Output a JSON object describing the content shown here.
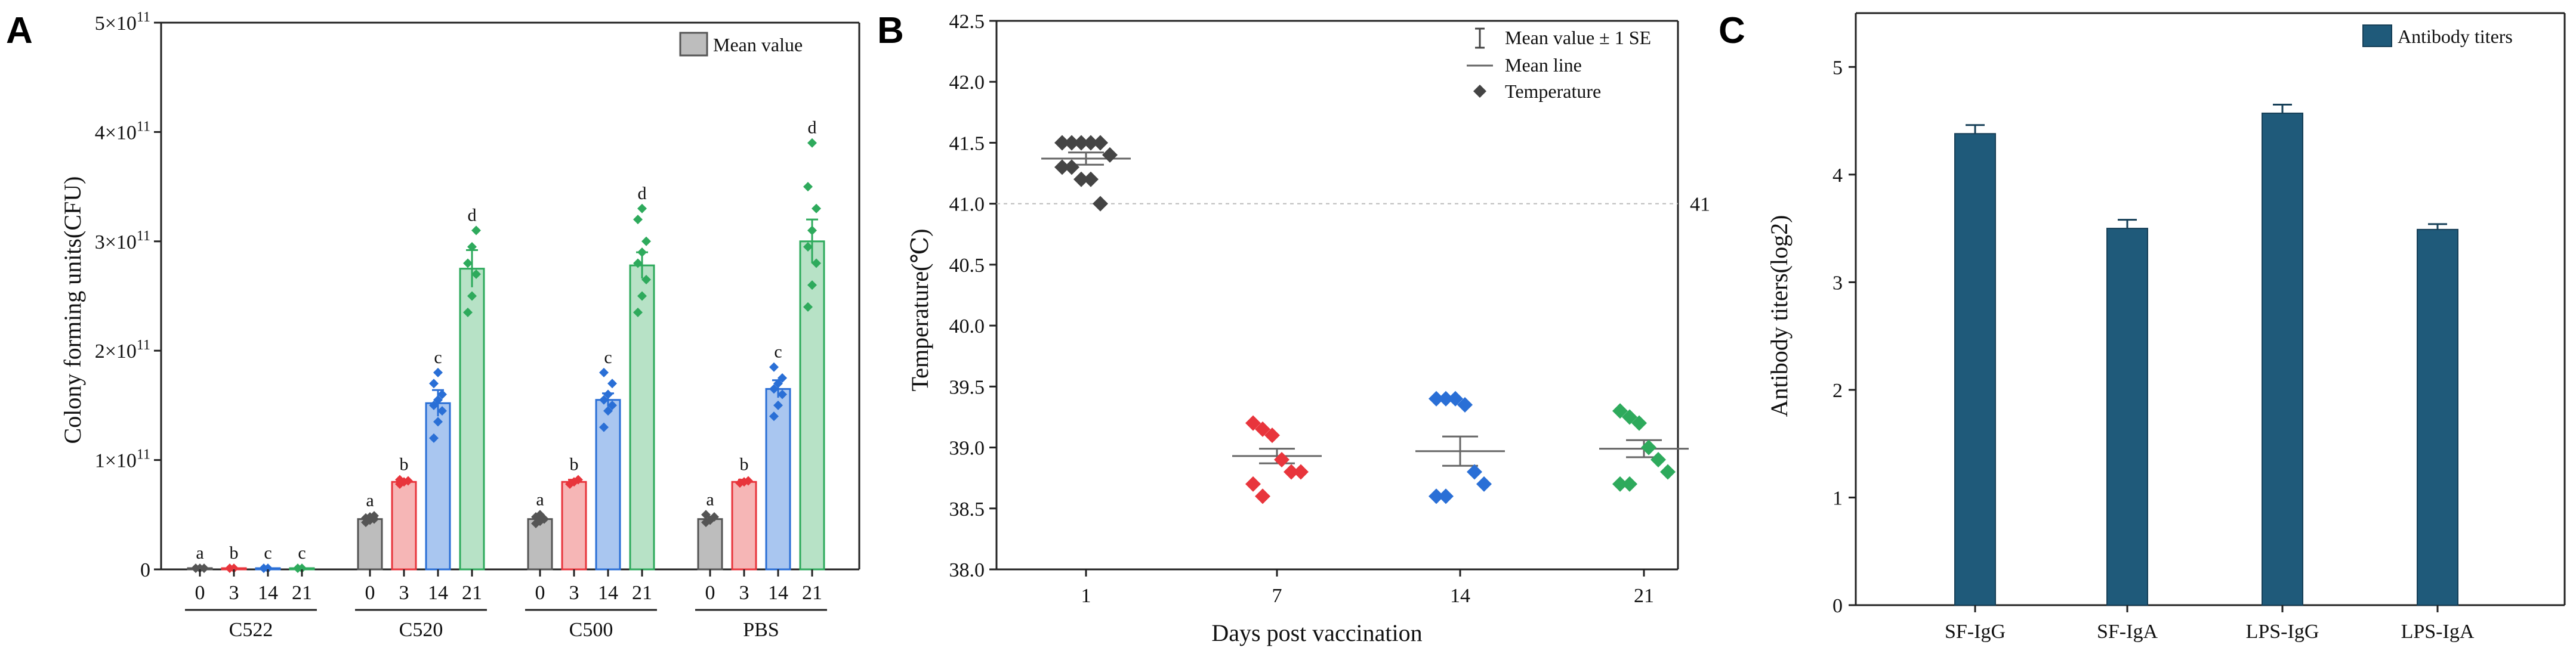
{
  "panels": [
    {
      "id": "A",
      "letter": "A",
      "chart_data": {
        "type": "bar",
        "title": "",
        "ylabel": "Colony forming units(CFU)",
        "ylim": [
          0,
          500000000000.0
        ],
        "yticks": [
          {
            "value": 0,
            "label": "0"
          },
          {
            "value": 100000000000.0,
            "label": "1×10",
            "exp": "11"
          },
          {
            "value": 200000000000.0,
            "label": "2×10",
            "exp": "11"
          },
          {
            "value": 300000000000.0,
            "label": "3×10",
            "exp": "11"
          },
          {
            "value": 400000000000.0,
            "label": "4×10",
            "exp": "11"
          },
          {
            "value": 500000000000.0,
            "label": "5×10",
            "exp": "11"
          }
        ],
        "legend": {
          "label": "Mean value",
          "position": "top-right"
        },
        "day_colors": {
          "0": "#555555",
          "3": "#e8353c",
          "14": "#2a6fd6",
          "21": "#2eaa5c"
        },
        "day_fills": {
          "0": "#bdbdbd",
          "3": "#f6b6b6",
          "14": "#a9c6f0",
          "21": "#b7e2c6"
        },
        "groups": [
          {
            "name": "C522",
            "bars": [
              {
                "day": "0",
                "value": 1000000000.0,
                "se": 0,
                "letter": "a",
                "points": [
                  1000000000.0,
                  1000000000.0,
                  1000000000.0
                ]
              },
              {
                "day": "3",
                "value": 1000000000.0,
                "se": 0,
                "letter": "b",
                "points": [
                  1000000000.0,
                  1000000000.0
                ]
              },
              {
                "day": "14",
                "value": 1000000000.0,
                "se": 0,
                "letter": "c",
                "points": [
                  1000000000.0,
                  1000000000.0
                ]
              },
              {
                "day": "21",
                "value": 1000000000.0,
                "se": 0,
                "letter": "c",
                "points": [
                  1000000000.0,
                  1000000000.0
                ]
              }
            ]
          },
          {
            "name": "C520",
            "bars": [
              {
                "day": "0",
                "value": 46000000000.0,
                "se": 2000000000.0,
                "letter": "a",
                "points": [
                  43000000000.0,
                  45000000000.0,
                  46000000000.0,
                  47000000000.0,
                  48000000000.0,
                  49000000000.0
                ]
              },
              {
                "day": "3",
                "value": 80000000000.0,
                "se": 2000000000.0,
                "letter": "b",
                "points": [
                  78000000000.0,
                  80000000000.0,
                  81000000000.0,
                  82000000000.0
                ]
              },
              {
                "day": "14",
                "value": 152000000000.0,
                "se": 12000000000.0,
                "letter": "c",
                "points": [
                  120000000000.0,
                  135000000000.0,
                  145000000000.0,
                  150000000000.0,
                  155000000000.0,
                  160000000000.0,
                  170000000000.0,
                  180000000000.0
                ]
              },
              {
                "day": "21",
                "value": 275000000000.0,
                "se": 17000000000.0,
                "letter": "d",
                "points": [
                  235000000000.0,
                  250000000000.0,
                  270000000000.0,
                  280000000000.0,
                  295000000000.0,
                  310000000000.0
                ]
              }
            ]
          },
          {
            "name": "C500",
            "bars": [
              {
                "day": "0",
                "value": 46000000000.0,
                "se": 2000000000.0,
                "letter": "a",
                "points": [
                  42000000000.0,
                  44000000000.0,
                  46000000000.0,
                  48000000000.0,
                  50000000000.0
                ]
              },
              {
                "day": "3",
                "value": 80000000000.0,
                "se": 2000000000.0,
                "letter": "b",
                "points": [
                  78000000000.0,
                  80000000000.0,
                  82000000000.0
                ]
              },
              {
                "day": "14",
                "value": 155000000000.0,
                "se": 6000000000.0,
                "letter": "c",
                "points": [
                  130000000000.0,
                  145000000000.0,
                  150000000000.0,
                  155000000000.0,
                  160000000000.0,
                  170000000000.0,
                  180000000000.0
                ]
              },
              {
                "day": "21",
                "value": 278000000000.0,
                "se": 12000000000.0,
                "letter": "d",
                "points": [
                  235000000000.0,
                  250000000000.0,
                  265000000000.0,
                  280000000000.0,
                  290000000000.0,
                  300000000000.0,
                  320000000000.0,
                  330000000000.0
                ]
              }
            ]
          },
          {
            "name": "PBS",
            "bars": [
              {
                "day": "0",
                "value": 46000000000.0,
                "se": 2000000000.0,
                "letter": "a",
                "points": [
                  43000000000.0,
                  45000000000.0,
                  48000000000.0,
                  50000000000.0
                ]
              },
              {
                "day": "3",
                "value": 80000000000.0,
                "se": 2000000000.0,
                "letter": "b",
                "points": [
                  79000000000.0,
                  80000000000.0,
                  81000000000.0
                ]
              },
              {
                "day": "14",
                "value": 165000000000.0,
                "se": 8000000000.0,
                "letter": "c",
                "points": [
                  140000000000.0,
                  150000000000.0,
                  160000000000.0,
                  165000000000.0,
                  170000000000.0,
                  175000000000.0,
                  185000000000.0
                ]
              },
              {
                "day": "21",
                "value": 300000000000.0,
                "se": 20000000000.0,
                "letter": "d",
                "points": [
                  240000000000.0,
                  260000000000.0,
                  280000000000.0,
                  295000000000.0,
                  310000000000.0,
                  330000000000.0,
                  350000000000.0,
                  390000000000.0
                ]
              }
            ]
          }
        ]
      }
    },
    {
      "id": "B",
      "letter": "B",
      "chart_data": {
        "type": "scatter",
        "title": "",
        "xlabel": "Days post vaccination",
        "ylabel": "Temperature(℃)",
        "ylim": [
          38.0,
          42.5
        ],
        "yticks": [
          "38.0",
          "38.5",
          "39.0",
          "39.5",
          "40.0",
          "40.5",
          "41.0",
          "41.5",
          "42.0",
          "42.5"
        ],
        "categories": [
          "1",
          "7",
          "14",
          "21"
        ],
        "reference_line": {
          "value": 41,
          "label": "41"
        },
        "legend": {
          "position": "top-right",
          "entries": [
            "Mean value ± 1 SE",
            "Mean line",
            "Temperature"
          ]
        },
        "series": [
          {
            "name": "1",
            "color": "#444444",
            "mean": 41.37,
            "se": 0.05,
            "points": [
              41.5,
              41.5,
              41.5,
              41.5,
              41.5,
              41.4,
              41.3,
              41.3,
              41.2,
              41.2,
              41.0
            ]
          },
          {
            "name": "7",
            "color": "#e8353c",
            "mean": 38.93,
            "se": 0.06,
            "points": [
              39.2,
              39.15,
              39.1,
              38.9,
              38.8,
              38.8,
              38.7,
              38.6
            ]
          },
          {
            "name": "14",
            "color": "#2a6fd6",
            "mean": 38.97,
            "se": 0.12,
            "points": [
              39.4,
              39.4,
              39.4,
              39.35,
              38.8,
              38.7,
              38.6,
              38.6
            ]
          },
          {
            "name": "21",
            "color": "#2eaa5c",
            "mean": 38.99,
            "se": 0.07,
            "points": [
              39.3,
              39.25,
              39.2,
              39.0,
              38.9,
              38.8,
              38.7,
              38.7
            ]
          }
        ]
      }
    },
    {
      "id": "C",
      "letter": "C",
      "chart_data": {
        "type": "bar",
        "title": "",
        "xlabel": "",
        "ylabel": "Antibody titers(log2)",
        "ylim": [
          0,
          5.5
        ],
        "yticks": [
          "0",
          "1",
          "2",
          "3",
          "4",
          "5"
        ],
        "categories": [
          "SF-IgG",
          "SF-IgA",
          "LPS-IgG",
          "LPS-IgA"
        ],
        "values": [
          4.38,
          3.5,
          4.57,
          3.49
        ],
        "errors": [
          0.08,
          0.08,
          0.08,
          0.05
        ],
        "color": "#1f5a7a",
        "legend": {
          "label": "Antibody titers",
          "position": "top-right"
        }
      }
    }
  ]
}
